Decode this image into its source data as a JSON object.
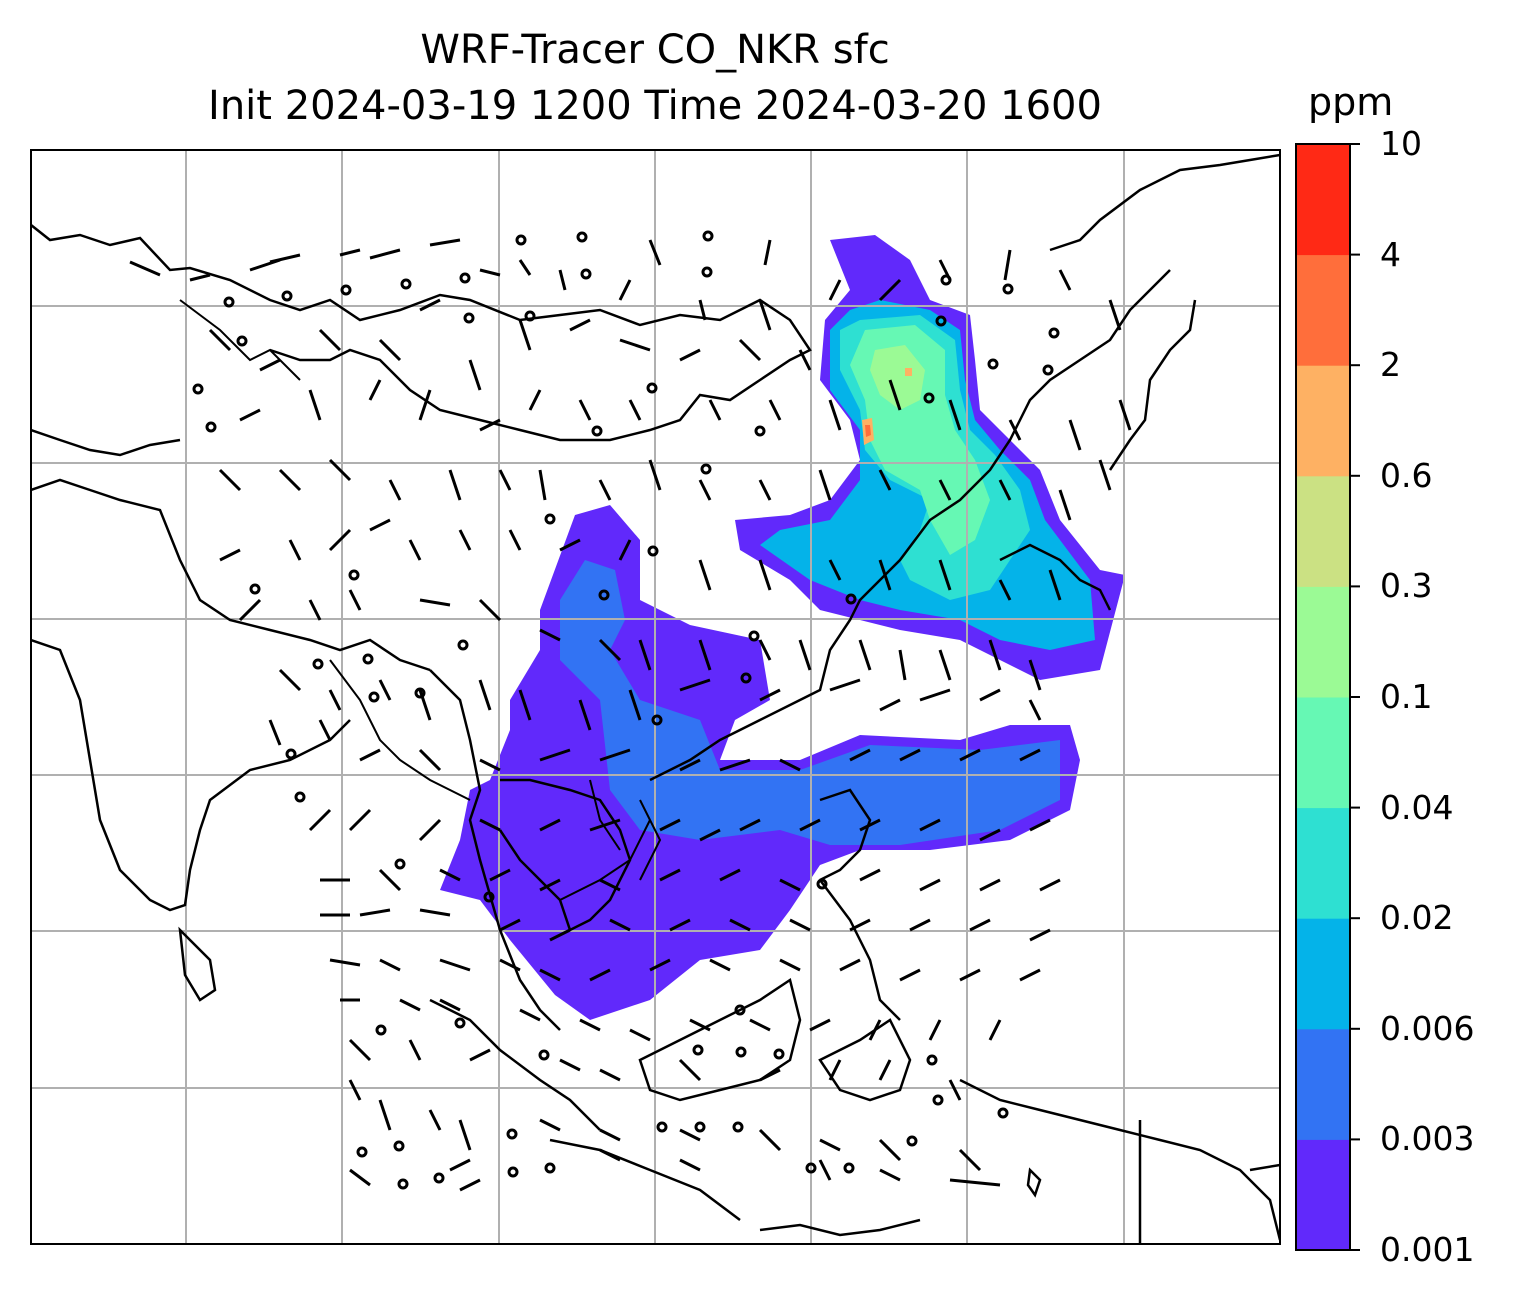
{
  "title": {
    "line1": "WRF-Tracer CO_NKR sfc",
    "line2": "Init 2024-03-19 1200 Time 2024-03-20 1600"
  },
  "colorbar": {
    "unit": "ppm",
    "levels": [
      "0.001",
      "0.003",
      "0.006",
      "0.02",
      "0.04",
      "0.1",
      "0.3",
      "0.6",
      "2",
      "4",
      "10"
    ],
    "colors": [
      "#6129fb",
      "#3273f3",
      "#04b3e9",
      "#2ee0d2",
      "#66f8b4",
      "#9bfa95",
      "#cbe183",
      "#feb163",
      "#ff6e3b",
      "#ff2915"
    ]
  },
  "map": {
    "gridlines": true,
    "features": [
      "coastlines",
      "country-borders",
      "wind-barbs",
      "tracer-concentration"
    ]
  }
}
